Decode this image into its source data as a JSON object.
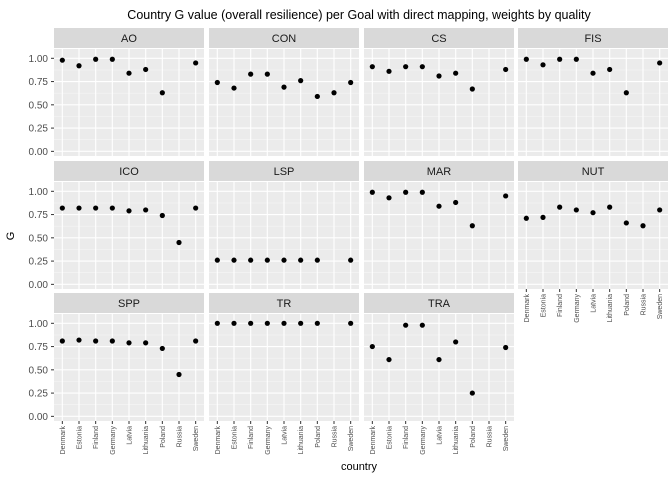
{
  "chart_data": {
    "type": "scatter",
    "title": "Country G value (overall resilience) per Goal with direct mapping, weights by quality",
    "xlabel": "country",
    "ylabel": "G",
    "ylim": [
      -0.05,
      1.1
    ],
    "yticks": [
      0,
      0.25,
      0.5,
      0.75,
      1
    ],
    "ytick_labels": [
      "0.00",
      "0.25",
      "0.50",
      "0.75",
      "1.00"
    ],
    "grid": true,
    "facet_columns": 4,
    "categories": [
      "Denmark",
      "Estonia",
      "Finland",
      "Germany",
      "Latvia",
      "Lithuania",
      "Poland",
      "Russia",
      "Sweden"
    ],
    "panels": [
      {
        "name": "AO",
        "values": [
          0.98,
          0.92,
          0.99,
          0.99,
          0.84,
          0.88,
          0.63,
          null,
          0.95
        ]
      },
      {
        "name": "CON",
        "values": [
          0.74,
          0.68,
          0.83,
          0.83,
          0.69,
          0.76,
          0.59,
          0.63,
          0.74
        ]
      },
      {
        "name": "CS",
        "values": [
          0.91,
          0.86,
          0.91,
          0.91,
          0.81,
          0.84,
          0.67,
          null,
          0.88
        ]
      },
      {
        "name": "FIS",
        "values": [
          0.99,
          0.93,
          0.99,
          0.99,
          0.84,
          0.88,
          0.63,
          null,
          0.95
        ]
      },
      {
        "name": "ICO",
        "values": [
          0.82,
          0.82,
          0.82,
          0.82,
          0.79,
          0.8,
          0.74,
          0.45,
          0.82
        ]
      },
      {
        "name": "LSP",
        "values": [
          0.26,
          0.26,
          0.26,
          0.26,
          0.26,
          0.26,
          0.26,
          null,
          0.26
        ]
      },
      {
        "name": "MAR",
        "values": [
          0.99,
          0.93,
          0.99,
          0.99,
          0.84,
          0.88,
          0.63,
          null,
          0.95
        ]
      },
      {
        "name": "NUT",
        "values": [
          0.71,
          0.72,
          0.83,
          0.8,
          0.77,
          0.83,
          0.66,
          0.63,
          0.8
        ]
      },
      {
        "name": "SPP",
        "values": [
          0.81,
          0.82,
          0.81,
          0.81,
          0.79,
          0.79,
          0.73,
          0.45,
          0.81
        ]
      },
      {
        "name": "TR",
        "values": [
          1.0,
          1.0,
          1.0,
          1.0,
          1.0,
          1.0,
          1.0,
          null,
          1.0
        ]
      },
      {
        "name": "TRA",
        "values": [
          0.75,
          0.61,
          0.98,
          0.98,
          0.61,
          0.8,
          0.25,
          null,
          0.74
        ]
      }
    ]
  }
}
